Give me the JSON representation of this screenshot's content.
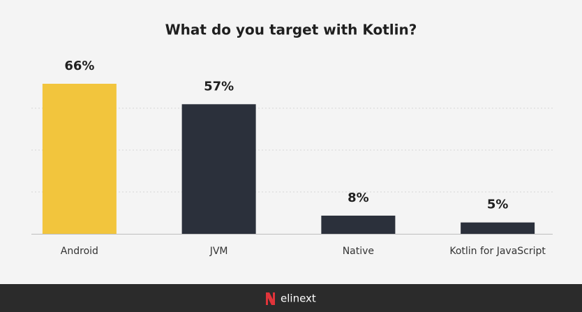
{
  "chart_data": {
    "type": "bar",
    "title": "What do you target with Kotlin?",
    "categories": [
      "Android",
      "JVM",
      "Native",
      "Kotlin for JavaScript"
    ],
    "values": [
      66,
      57,
      8,
      5
    ],
    "value_labels": [
      "66%",
      "57%",
      "8%",
      "5%"
    ],
    "colors": [
      "#f2c53d",
      "#2b303b",
      "#2b303b",
      "#2b303b"
    ]
  },
  "footer": {
    "brand": "elinext"
  }
}
